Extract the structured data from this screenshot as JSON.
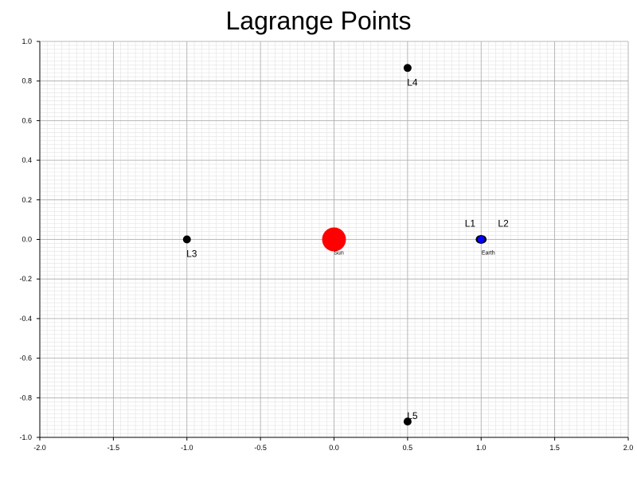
{
  "chart_data": {
    "type": "scatter",
    "title": "Lagrange Points",
    "xlabel": "",
    "ylabel": "",
    "xlim": [
      -2.0,
      2.0
    ],
    "ylim": [
      -1.0,
      1.0
    ],
    "grid": "on (major every 0.5 / 0.2, minor fine grid)",
    "legend": "none",
    "x_ticks": [
      "-2.0",
      "-1.5",
      "-1.0",
      "-0.5",
      "0.0",
      "0.5",
      "1.0",
      "1.5",
      "2.0"
    ],
    "y_ticks": [
      "1.0",
      "0.8",
      "0.6",
      "0.4",
      "0.2",
      "0.0",
      "-0.2",
      "-0.4",
      "-0.6",
      "-0.8",
      "-1.0"
    ],
    "bodies": [
      {
        "label": "Sun",
        "x": 0.0,
        "y": 0.0,
        "color": "#ff0000"
      },
      {
        "label": "Earth",
        "x": 1.0,
        "y": 0.0,
        "color": "#0000ff"
      }
    ],
    "points": [
      {
        "label": "L1",
        "x": 0.99,
        "y": 0.0,
        "color": "#000000"
      },
      {
        "label": "L2",
        "x": 1.01,
        "y": 0.0,
        "color": "#000000"
      },
      {
        "label": "L3",
        "x": -1.0,
        "y": 0.0,
        "color": "#000000"
      },
      {
        "label": "L4",
        "x": 0.5,
        "y": 0.866,
        "color": "#000000"
      },
      {
        "label": "L5",
        "x": 0.5,
        "y": -0.92,
        "color": "#000000"
      }
    ]
  }
}
